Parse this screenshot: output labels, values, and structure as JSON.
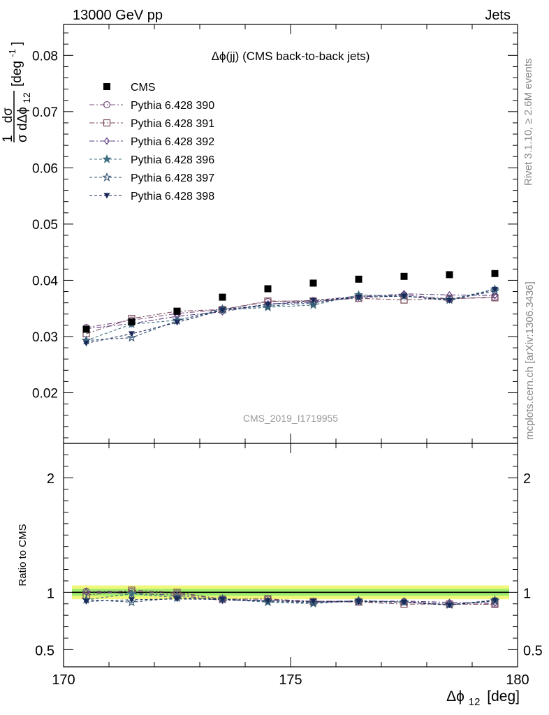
{
  "header": {
    "left": "13000 GeV pp",
    "right": "Jets"
  },
  "side_text": {
    "rivet": "Rivet 3.1.10, ≥ 2.6M events",
    "mcplots": "mcplots.cern.ch [arXiv:1306.3436]"
  },
  "watermark": "CMS_2019_I1719955",
  "chart_data": {
    "type": "scatter",
    "title": "Δϕ(jj) (CMS back-to-back jets)",
    "xlabel": "Δϕ",
    "xlabel_sub": "12",
    "xlabel_unit": "[deg]",
    "ylabel": {
      "prefix": "1",
      "numerator": "dσ",
      "denominator_sigma": "σ",
      "denominator_rest": "dΔϕ",
      "denominator_sub": "12",
      "unit": "[deg",
      "unit_sup": "-1",
      "unit_close": "]"
    },
    "ratio_ylabel": "Ratio to CMS",
    "xlim": [
      170,
      180
    ],
    "ylim": [
      0.011,
      0.0855
    ],
    "ratio_ylim": [
      0.35,
      2.3
    ],
    "x_ticks": [
      "170",
      "175",
      "180"
    ],
    "y_ticks": [
      "0.02",
      "0.03",
      "0.04",
      "0.05",
      "0.06",
      "0.07",
      "0.08"
    ],
    "ratio_ticks": [
      "0.5",
      "1",
      "2"
    ],
    "legend_position": "top-left",
    "x": [
      170.5,
      171.5,
      172.5,
      173.5,
      174.5,
      175.5,
      176.5,
      177.5,
      178.5,
      179.5
    ],
    "data": {
      "name": "CMS",
      "color": "#000000",
      "values": [
        0.0313,
        0.0326,
        0.0345,
        0.037,
        0.0385,
        0.0395,
        0.0402,
        0.0407,
        0.041,
        0.0412
      ]
    },
    "band_color_inner": "#9eed6e",
    "band_color_outer": "#f0f77a",
    "series": [
      {
        "name": "Pythia 6.428 390",
        "color": "#7a4f7f",
        "marker": "circle-open",
        "dash": "7,3,2,3",
        "values": [
          0.0316,
          0.0329,
          0.0341,
          0.0348,
          0.0362,
          0.0364,
          0.0372,
          0.0374,
          0.0367,
          0.037
        ]
      },
      {
        "name": "Pythia 6.428 391",
        "color": "#7a4a5a",
        "marker": "square-open",
        "dash": "7,3,2,3",
        "values": [
          0.0305,
          0.0332,
          0.0345,
          0.0348,
          0.0363,
          0.0363,
          0.0368,
          0.0365,
          0.0368,
          0.0369
        ]
      },
      {
        "name": "Pythia 6.428 392",
        "color": "#5a3a80",
        "marker": "diamond-open",
        "dash": "7,3,2,3",
        "values": [
          0.0314,
          0.0323,
          0.0336,
          0.0344,
          0.0358,
          0.0361,
          0.037,
          0.0376,
          0.0374,
          0.0373
        ]
      },
      {
        "name": "Pythia 6.428 396",
        "color": "#3f6f80",
        "marker": "star-filled",
        "dash": "4,3",
        "values": [
          0.0293,
          0.0322,
          0.0329,
          0.0347,
          0.0352,
          0.0356,
          0.0374,
          0.0372,
          0.0366,
          0.0384
        ]
      },
      {
        "name": "Pythia 6.428 397",
        "color": "#2f4f70",
        "marker": "star-open",
        "dash": "4,3",
        "values": [
          0.0293,
          0.0298,
          0.0328,
          0.0349,
          0.0354,
          0.036,
          0.037,
          0.0372,
          0.0365,
          0.0381
        ]
      },
      {
        "name": "Pythia 6.428 398",
        "color": "#1a2a5a",
        "marker": "triangle-down-filled",
        "dash": "4,3",
        "values": [
          0.0288,
          0.0305,
          0.0325,
          0.0347,
          0.0357,
          0.0364,
          0.037,
          0.0372,
          0.0364,
          0.0384
        ]
      }
    ]
  }
}
